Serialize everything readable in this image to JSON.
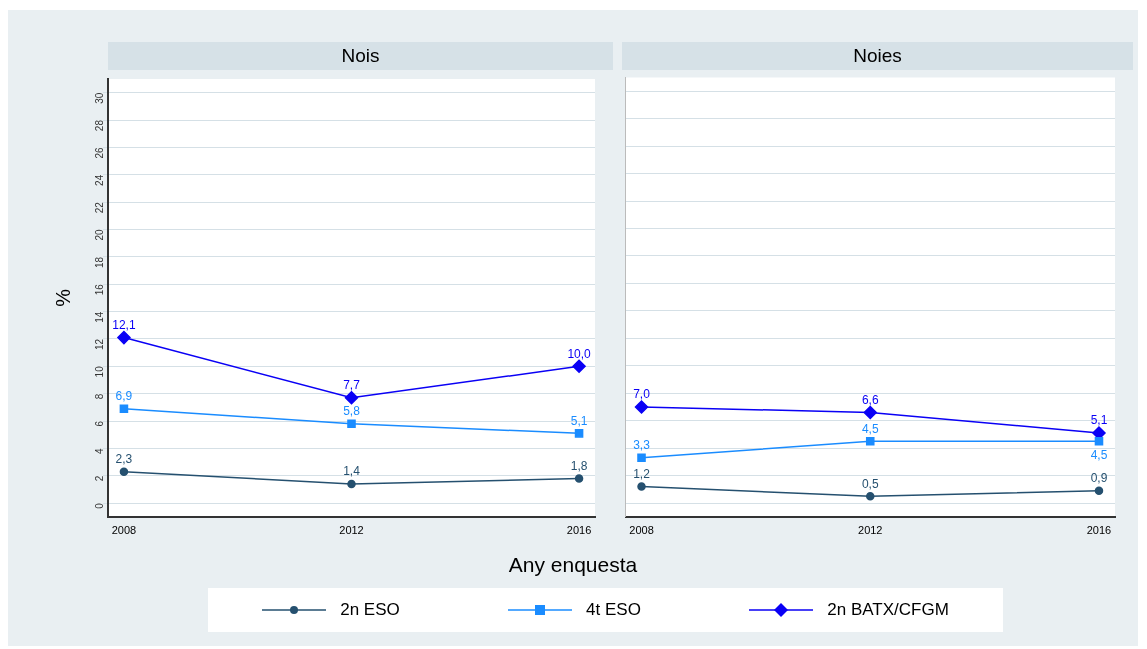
{
  "chart_data": [
    {
      "type": "line",
      "title": "Nois",
      "xlabel": "Any enquesta",
      "ylabel": "%",
      "categories": [
        "2008",
        "2012",
        "2016"
      ],
      "ylim": [
        -1,
        31
      ],
      "yticks": [
        0,
        2,
        4,
        6,
        8,
        10,
        12,
        14,
        16,
        18,
        20,
        22,
        24,
        26,
        28,
        30
      ],
      "grid": "y",
      "legend": "bottom",
      "series": [
        {
          "name": "2n ESO",
          "color": "#25506f",
          "marker": "circle",
          "values": [
            2.3,
            1.4,
            1.8
          ],
          "value_labels": [
            "2,3",
            "1,4",
            "1,8"
          ]
        },
        {
          "name": "4t ESO",
          "color": "#1a8cff",
          "marker": "square",
          "values": [
            6.9,
            5.8,
            5.1
          ],
          "value_labels": [
            "6,9",
            "5,8",
            "5,1"
          ]
        },
        {
          "name": "2n BATX/CFGM",
          "color": "#0a00f5",
          "marker": "diamond",
          "values": [
            12.1,
            7.7,
            10.0
          ],
          "value_labels": [
            "12,1",
            "7,7",
            "10,0"
          ]
        }
      ]
    },
    {
      "type": "line",
      "title": "Noies",
      "categories": [
        "2008",
        "2012",
        "2016"
      ],
      "ylim": [
        -1,
        31
      ],
      "yticks": [
        0,
        2,
        4,
        6,
        8,
        10,
        12,
        14,
        16,
        18,
        20,
        22,
        24,
        26,
        28,
        30
      ],
      "grid": "y",
      "tick_labels": "x",
      "series": [
        {
          "color": "#25506f",
          "marker": "circle",
          "values": [
            1.2,
            0.5,
            0.9
          ],
          "value_labels": [
            "1,2",
            "0,5",
            "0,9"
          ]
        },
        {
          "color": "#1a8cff",
          "marker": "square",
          "values": [
            3.3,
            4.5,
            4.5
          ],
          "value_labels": [
            "3,3",
            "4,5",
            "4,5"
          ]
        },
        {
          "color": "#0a00f5",
          "marker": "diamond",
          "values": [
            7.0,
            6.6,
            5.1
          ],
          "value_labels": [
            "7,0",
            "6,6",
            "5,1"
          ]
        }
      ]
    }
  ]
}
